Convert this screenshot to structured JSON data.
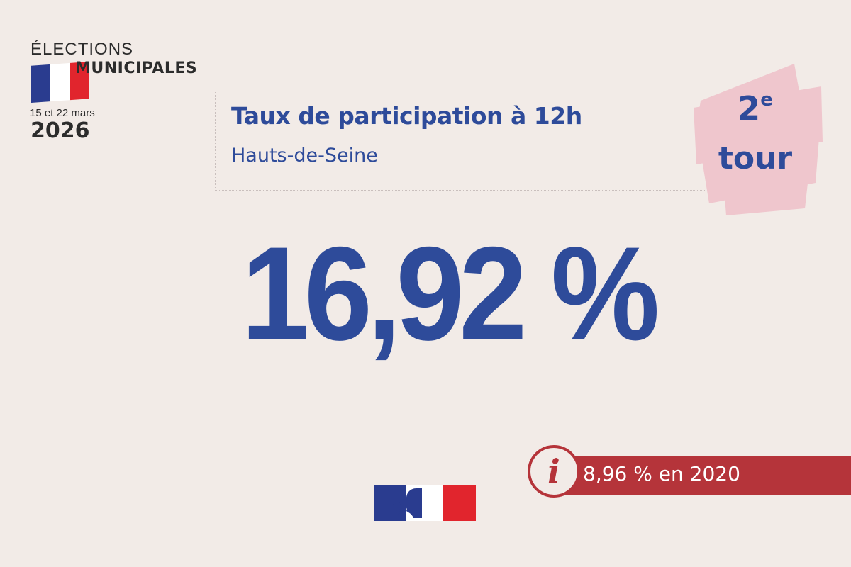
{
  "logo": {
    "line1": "ÉLECTIONS",
    "line2": "MUNICIPALES",
    "dates": "15 et 22 mars",
    "year": "2026",
    "flag_colors": [
      "#2a3c8f",
      "#ffffff",
      "#e1252d"
    ]
  },
  "headline": {
    "title": "Taux de participation à 12h",
    "subtitle": "Hauts-de-Seine"
  },
  "round": {
    "number": "2",
    "suffix": "e",
    "word": "tour"
  },
  "participation": {
    "value": "16,92 %"
  },
  "comparison": {
    "icon": "info-icon",
    "text": "8,96 % en 2020"
  },
  "colors": {
    "background": "#f2ebe7",
    "primary_blue": "#2e4b9a",
    "accent_red": "#b5343a",
    "badge_pink": "#efc6cd",
    "text_dark": "#2c2c2c"
  }
}
